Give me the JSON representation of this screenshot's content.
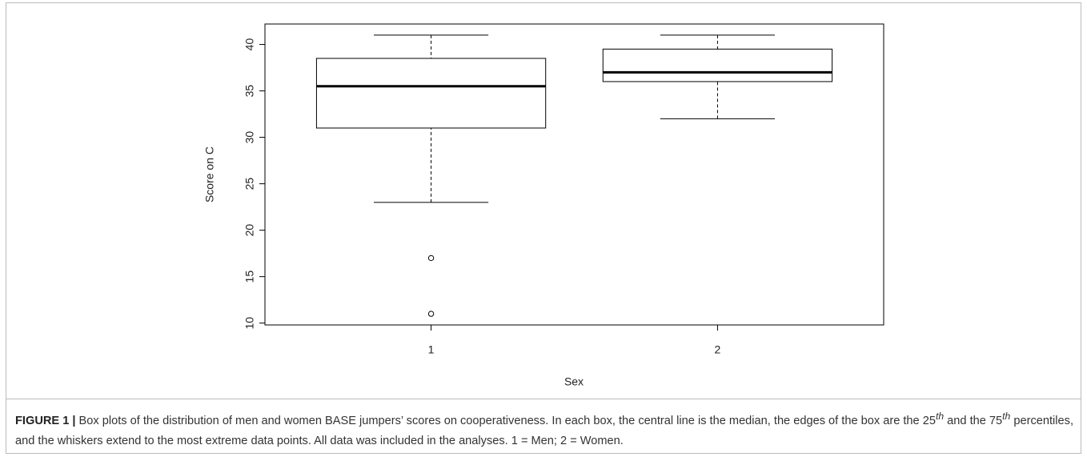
{
  "chart_data": {
    "type": "box",
    "y_label": "Score on C",
    "x_label": "Sex",
    "categories": [
      "1",
      "2"
    ],
    "boxes": [
      {
        "whisker_low": 23,
        "q1": 31,
        "median": 35.5,
        "q3": 38.5,
        "whisker_high": 41,
        "outliers": [
          17,
          11
        ]
      },
      {
        "whisker_low": 32,
        "q1": 36,
        "median": 37,
        "q3": 39.5,
        "whisker_high": 41,
        "outliers": []
      }
    ],
    "color": "#000000",
    "ylim": [
      9.8,
      42.2
    ],
    "yticks": [
      10,
      15,
      20,
      25,
      30,
      35,
      40
    ]
  },
  "caption": {
    "label": "FIGURE 1 |",
    "segments": [
      " Box plots of the distribution of men and women BASE jumpers’ scores on cooperativeness. In each box, the central line is the median, the edges of the box are the 25",
      "th",
      " and the 75",
      "th",
      " percentiles, and the whiskers extend to the most extreme data points. All data was included in the analyses. 1 = Men; 2 = Women."
    ]
  }
}
